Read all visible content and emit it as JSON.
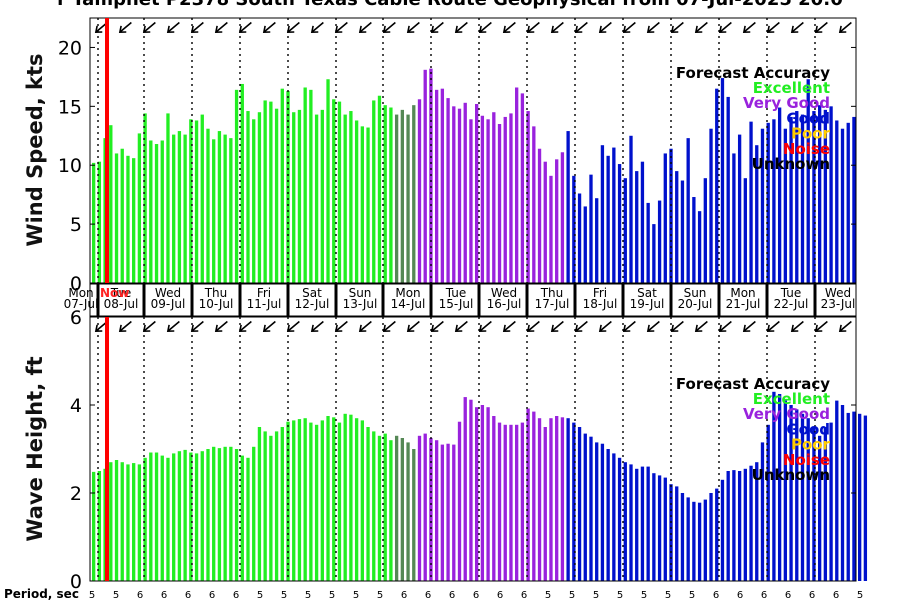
{
  "title": "r Tamphet P2378 South Texas Cable Route Geophysical from 07-Jul-2025 20:0",
  "colors": {
    "Excellent": "#22ee22",
    "ExcellentDark": "#558855",
    "VeryGood": "#9922dd",
    "Good": "#0011cc",
    "Poor": "#ffcc00",
    "Noise": "#ff0000",
    "Unknown": "#000000",
    "now_line": "#ff0000"
  },
  "legend": {
    "title": "Forecast Accuracy",
    "entries": [
      {
        "label": "Excellent",
        "color": "#22ee22"
      },
      {
        "label": "Very Good",
        "color": "#9922dd"
      },
      {
        "label": "Good",
        "color": "#0011cc"
      },
      {
        "label": "Poor",
        "color": "#ffcc00"
      },
      {
        "label": "Noise",
        "color": "#ff0000"
      },
      {
        "label": "Unknown",
        "color": "#000000"
      }
    ]
  },
  "day_labels": [
    {
      "dow": "Mon",
      "date": "07-Jul"
    },
    {
      "dow": "Tue",
      "date": "08-Jul"
    },
    {
      "dow": "Wed",
      "date": "09-Jul"
    },
    {
      "dow": "Thu",
      "date": "10-Jul"
    },
    {
      "dow": "Fri",
      "date": "11-Jul"
    },
    {
      "dow": "Sat",
      "date": "12-Jul"
    },
    {
      "dow": "Sun",
      "date": "13-Jul"
    },
    {
      "dow": "Mon",
      "date": "14-Jul"
    },
    {
      "dow": "Tue",
      "date": "15-Jul"
    },
    {
      "dow": "Wed",
      "date": "16-Jul"
    },
    {
      "dow": "Thu",
      "date": "17-Jul"
    },
    {
      "dow": "Fri",
      "date": "18-Jul"
    },
    {
      "dow": "Sat",
      "date": "19-Jul"
    },
    {
      "dow": "Sun",
      "date": "20-Jul"
    },
    {
      "dow": "Mon",
      "date": "21-Jul"
    },
    {
      "dow": "Tue",
      "date": "22-Jul"
    },
    {
      "dow": "Wed",
      "date": "23-Jul"
    }
  ],
  "now_label": "Now",
  "period_label": "Period, sec",
  "chart_data": [
    {
      "type": "bar",
      "ylabel": "Wind Speed, kts",
      "ylim": [
        0,
        22.5
      ],
      "yticks": [
        0,
        5,
        10,
        15,
        20
      ],
      "values": [
        10.2,
        10.3,
        12.3,
        13.4,
        11.0,
        11.4,
        10.8,
        10.6,
        12.7,
        14.4,
        12.1,
        11.8,
        12.1,
        14.4,
        12.6,
        12.9,
        12.6,
        13.9,
        13.8,
        14.3,
        13.1,
        12.2,
        12.9,
        12.6,
        12.3,
        16.4,
        16.9,
        14.6,
        13.9,
        14.5,
        15.5,
        15.4,
        14.8,
        16.5,
        16.3,
        14.5,
        14.7,
        16.6,
        16.4,
        14.3,
        14.7,
        17.3,
        15.6,
        15.4,
        14.3,
        14.6,
        13.8,
        13.3,
        13.2,
        15.5,
        15.9,
        15.1,
        14.9,
        14.3,
        14.7,
        14.3,
        15.1,
        15.6,
        18.1,
        18.2,
        16.4,
        16.5,
        15.7,
        15.0,
        14.8,
        15.3,
        13.9,
        15.2,
        14.2,
        13.9,
        14.5,
        13.5,
        14.1,
        14.4,
        16.6,
        16.1,
        14.6,
        13.3,
        11.4,
        10.3,
        9.1,
        10.5,
        11.1,
        12.9,
        9.1,
        7.6,
        6.5,
        9.2,
        7.2,
        11.7,
        10.8,
        11.5,
        10.1,
        8.9,
        12.5,
        9.5,
        10.3,
        6.8,
        5.0,
        7.0,
        11.0,
        11.4,
        9.5,
        8.7,
        12.3,
        7.3,
        6.1,
        8.9,
        13.1,
        16.5,
        17.4,
        15.8,
        11.0,
        12.6,
        8.9,
        13.7,
        11.7,
        13.1,
        13.6,
        13.9,
        14.9,
        13.1,
        14.1,
        14.6,
        14.3,
        17.3,
        14.6,
        15.1,
        14.7,
        15.0,
        13.8,
        13.1,
        13.6,
        14.1
      ],
      "accuracy": [
        "Excellent",
        "Excellent",
        "Excellent",
        "Excellent",
        "Excellent",
        "Excellent",
        "Excellent",
        "Excellent",
        "Excellent",
        "Excellent",
        "Excellent",
        "Excellent",
        "Excellent",
        "Excellent",
        "Excellent",
        "Excellent",
        "Excellent",
        "Excellent",
        "Excellent",
        "Excellent",
        "Excellent",
        "Excellent",
        "Excellent",
        "Excellent",
        "Excellent",
        "Excellent",
        "Excellent",
        "Excellent",
        "Excellent",
        "Excellent",
        "Excellent",
        "Excellent",
        "Excellent",
        "Excellent",
        "Excellent",
        "Excellent",
        "Excellent",
        "Excellent",
        "Excellent",
        "Excellent",
        "Excellent",
        "Excellent",
        "Excellent",
        "Excellent",
        "Excellent",
        "Excellent",
        "Excellent",
        "Excellent",
        "Excellent",
        "Excellent",
        "Excellent",
        "Excellent",
        "Excellent",
        "ExcellentDark",
        "ExcellentDark",
        "ExcellentDark",
        "ExcellentDark",
        "VeryGood",
        "VeryGood",
        "VeryGood",
        "VeryGood",
        "VeryGood",
        "VeryGood",
        "VeryGood",
        "VeryGood",
        "VeryGood",
        "VeryGood",
        "VeryGood",
        "VeryGood",
        "VeryGood",
        "VeryGood",
        "VeryGood",
        "VeryGood",
        "VeryGood",
        "VeryGood",
        "VeryGood",
        "VeryGood",
        "VeryGood",
        "VeryGood",
        "VeryGood",
        "VeryGood",
        "VeryGood",
        "VeryGood",
        "Good",
        "Good",
        "Good",
        "Good",
        "Good",
        "Good",
        "Good",
        "Good",
        "Good",
        "Good",
        "Good",
        "Good",
        "Good",
        "Good",
        "Good",
        "Good",
        "Good",
        "Good",
        "Good",
        "Good",
        "Good",
        "Good",
        "Good",
        "Good",
        "Good",
        "Good",
        "Good",
        "Good",
        "Good",
        "Good",
        "Good",
        "Good",
        "Good",
        "Good",
        "Good",
        "Good",
        "Good",
        "Good",
        "Good",
        "Good",
        "Good",
        "Good",
        "Good",
        "Good",
        "Good",
        "Good",
        "Good",
        "Good",
        "Good",
        "Good",
        "Good",
        "Good",
        "Good",
        "Good",
        "Good",
        "Good"
      ]
    },
    {
      "type": "bar",
      "ylabel": "Wave Height, ft",
      "ylim": [
        0,
        6
      ],
      "yticks": [
        0,
        2,
        4,
        6
      ],
      "values": [
        2.48,
        2.5,
        2.55,
        2.7,
        2.75,
        2.7,
        2.65,
        2.68,
        2.65,
        2.8,
        2.92,
        2.92,
        2.85,
        2.8,
        2.9,
        2.95,
        2.98,
        2.92,
        2.9,
        2.95,
        3.0,
        3.05,
        3.02,
        3.05,
        3.05,
        3.0,
        2.85,
        2.8,
        3.05,
        3.5,
        3.4,
        3.3,
        3.4,
        3.5,
        3.62,
        3.65,
        3.68,
        3.7,
        3.6,
        3.55,
        3.65,
        3.75,
        3.72,
        3.6,
        3.8,
        3.78,
        3.7,
        3.65,
        3.5,
        3.4,
        3.3,
        3.35,
        3.2,
        3.3,
        3.25,
        3.15,
        3.0,
        3.3,
        3.35,
        3.25,
        3.2,
        3.1,
        3.12,
        3.1,
        3.62,
        4.18,
        4.12,
        3.95,
        4.0,
        3.95,
        3.75,
        3.6,
        3.55,
        3.55,
        3.55,
        3.6,
        3.92,
        3.85,
        3.7,
        3.5,
        3.7,
        3.75,
        3.72,
        3.7,
        3.6,
        3.5,
        3.35,
        3.28,
        3.15,
        3.12,
        3.0,
        2.9,
        2.8,
        2.7,
        2.65,
        2.55,
        2.6,
        2.6,
        2.45,
        2.4,
        2.35,
        2.2,
        2.15,
        2.0,
        1.9,
        1.8,
        1.78,
        1.85,
        2.0,
        2.1,
        2.3,
        2.5,
        2.52,
        2.5,
        2.55,
        2.62,
        2.7,
        3.15,
        3.55,
        4.3,
        4.25,
        4.1,
        4.0,
        3.9,
        3.8,
        3.7,
        3.5,
        3.3,
        3.5,
        3.6,
        4.1,
        4.0,
        3.82,
        3.85,
        3.8,
        3.76
      ]
    }
  ]
}
